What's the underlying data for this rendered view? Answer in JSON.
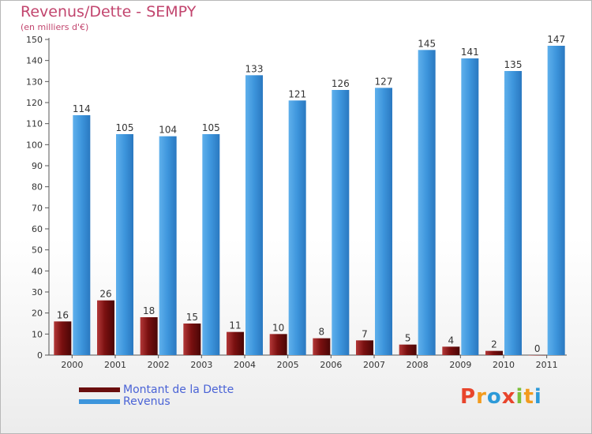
{
  "chart_data": {
    "type": "bar",
    "title": "Revenus/Dette - SEMPY",
    "subtitle": "(en milliers d'€)",
    "categories": [
      "2000",
      "2001",
      "2002",
      "2003",
      "2004",
      "2005",
      "2006",
      "2007",
      "2008",
      "2009",
      "2010",
      "2011"
    ],
    "series": [
      {
        "name": "Montant de la Dette",
        "color": "#7a1010",
        "values": [
          16,
          26,
          18,
          15,
          11,
          10,
          8,
          7,
          5,
          4,
          2,
          0
        ]
      },
      {
        "name": "Revenus",
        "color": "#3d95dc",
        "values": [
          114,
          105,
          104,
          105,
          133,
          121,
          126,
          127,
          145,
          141,
          135,
          147
        ]
      }
    ],
    "ylim": [
      0,
      150
    ],
    "yticks": [
      0,
      10,
      20,
      30,
      40,
      50,
      60,
      70,
      80,
      90,
      100,
      110,
      120,
      130,
      140,
      150
    ],
    "grid": false,
    "legend_position": "bottom-left"
  },
  "logo": {
    "letters": [
      "P",
      "r",
      "o",
      "x",
      "i",
      "t",
      "i"
    ],
    "colors": [
      "#e8452c",
      "#f29b1d",
      "#2d9ad8",
      "#e8452c",
      "#7cbf3a",
      "#f29b1d",
      "#2d9ad8"
    ]
  }
}
